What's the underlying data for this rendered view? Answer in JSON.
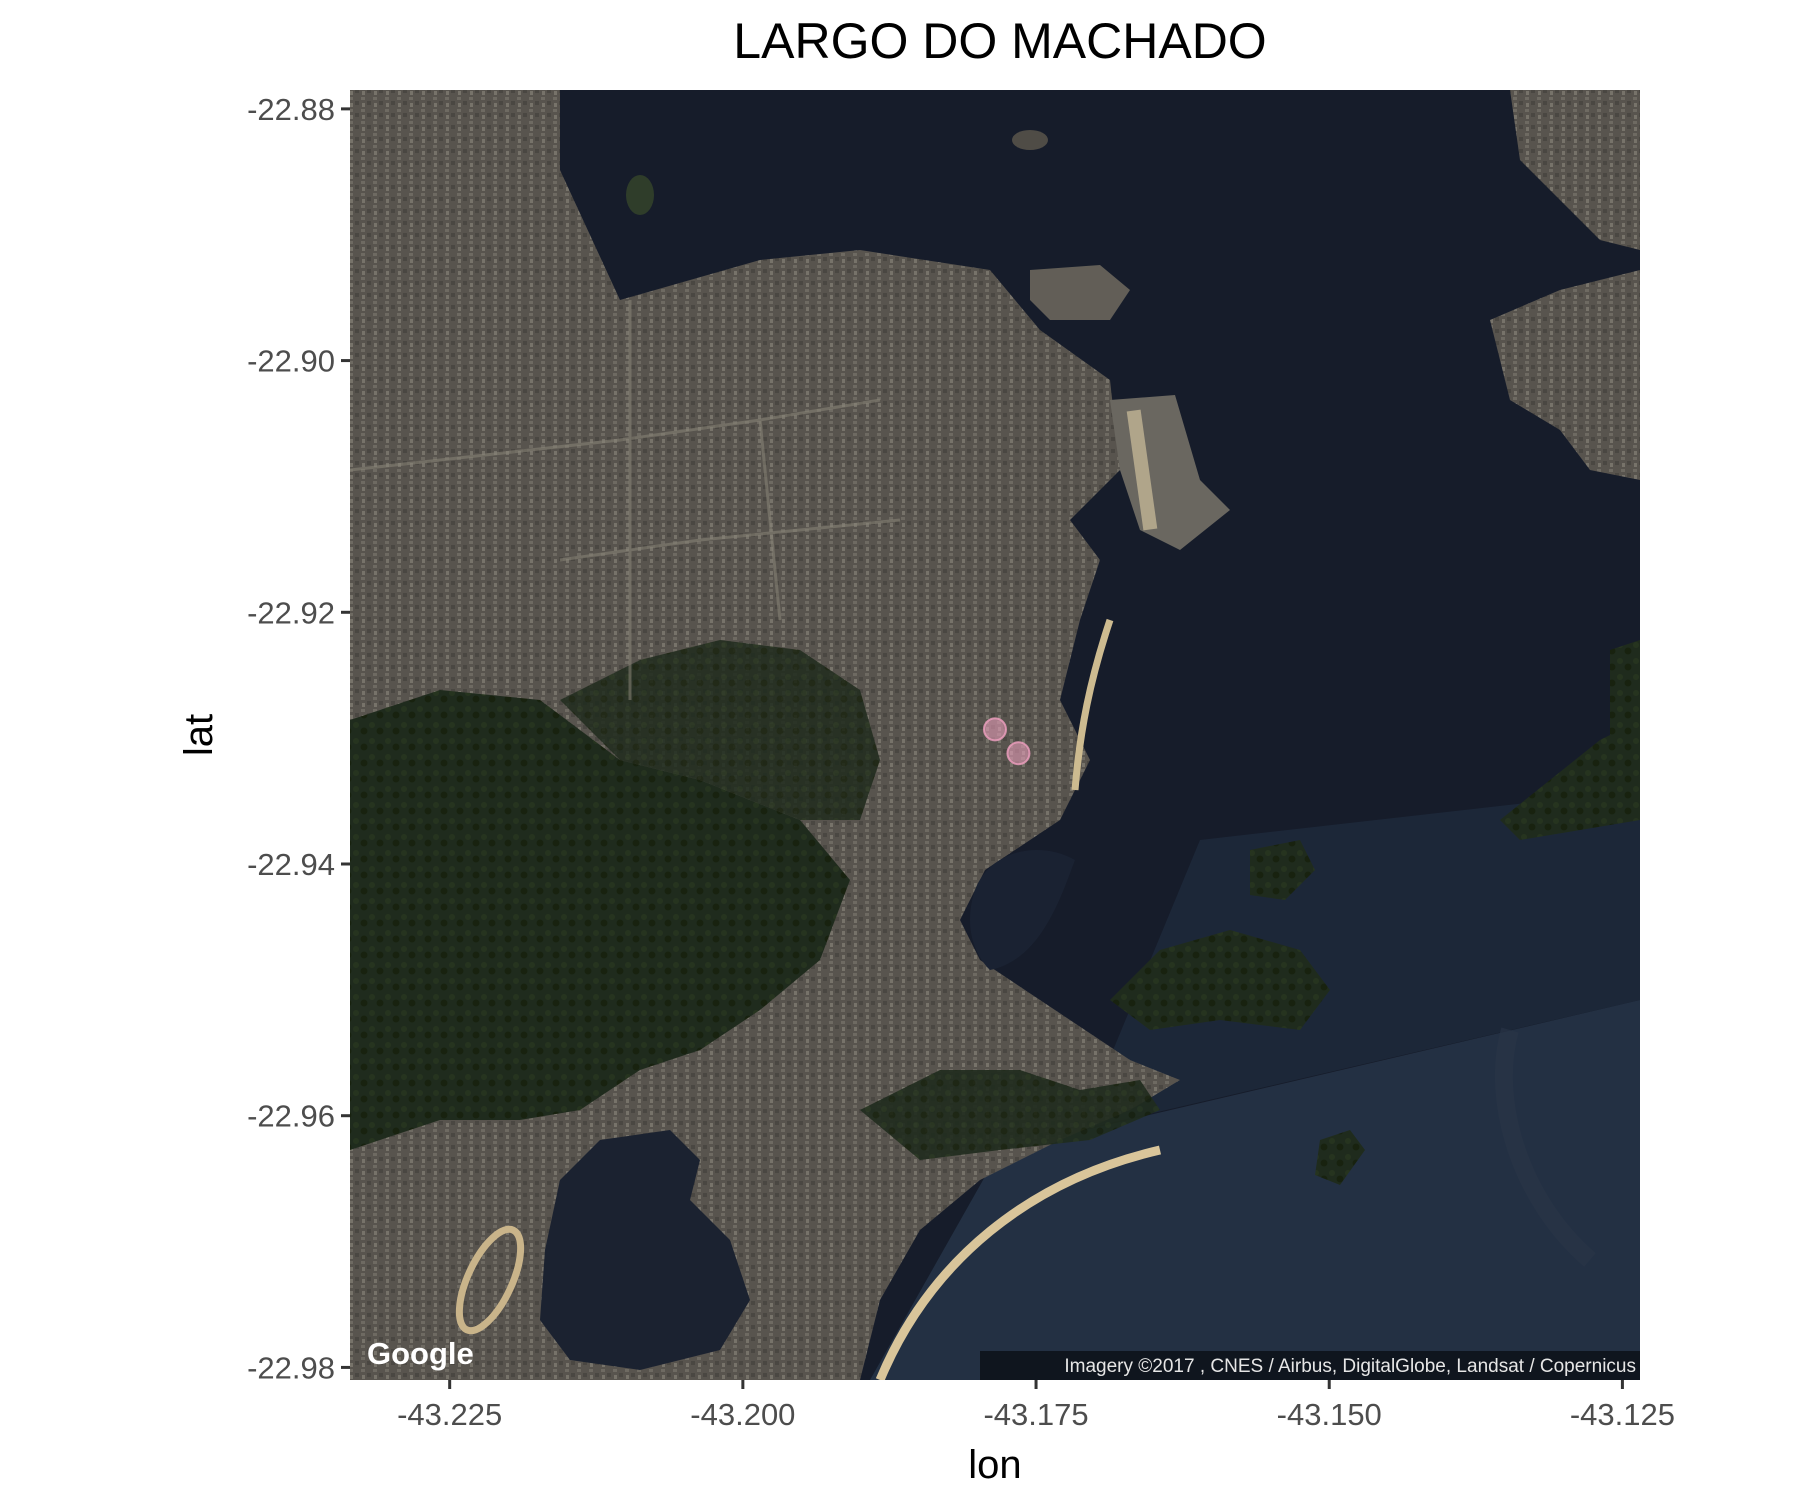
{
  "title": "LARGO DO MACHADO",
  "axes": {
    "xlabel": "lon",
    "ylabel": "lat",
    "xticks": [
      "-43.225",
      "-43.200",
      "-43.175",
      "-43.150",
      "-43.125"
    ],
    "yticks": [
      "-22.88",
      "-22.90",
      "-22.92",
      "-22.94",
      "-22.96",
      "-22.98"
    ]
  },
  "map": {
    "basemap": "satellite",
    "lon_range": [
      -43.2335,
      -43.1235
    ],
    "lat_range": [
      -22.981,
      -22.8785
    ],
    "logo": "Google",
    "attribution": "Imagery ©2017 , CNES / Airbus, DigitalGlobe, Landsat / Copernicus",
    "colors": {
      "water": "#161c2a",
      "urban": "#5a5650",
      "forest": "#1e2a1c",
      "beach": "#d8c8a0",
      "marker": "#f0a0c0"
    }
  },
  "points": [
    {
      "lon": -43.1785,
      "lat": -22.9293
    },
    {
      "lon": -43.1765,
      "lat": -22.9312
    }
  ]
}
